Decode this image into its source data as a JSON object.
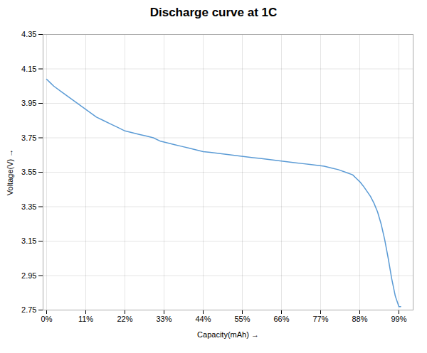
{
  "chart_data": {
    "type": "line",
    "title": "Discharge curve at 1C",
    "xlabel": "Capacity(mAh)",
    "ylabel": "Voltage(V)",
    "x": [
      0,
      1,
      2,
      4,
      6,
      8,
      10,
      12,
      14,
      16,
      18,
      20,
      22,
      24,
      26,
      28,
      30,
      32,
      34,
      36,
      38,
      40,
      42,
      44,
      46,
      48,
      50,
      52,
      54,
      56,
      58,
      60,
      62,
      64,
      66,
      68,
      70,
      72,
      74,
      76,
      78,
      80,
      82,
      84,
      86,
      87,
      88,
      89,
      90,
      91,
      92,
      93,
      94,
      95,
      96,
      97,
      98,
      99,
      99.5
    ],
    "values": [
      4.09,
      4.07,
      4.05,
      4.02,
      3.99,
      3.96,
      3.93,
      3.9,
      3.87,
      3.85,
      3.83,
      3.81,
      3.79,
      3.78,
      3.77,
      3.76,
      3.75,
      3.73,
      3.72,
      3.71,
      3.7,
      3.69,
      3.68,
      3.67,
      3.665,
      3.66,
      3.655,
      3.65,
      3.645,
      3.64,
      3.635,
      3.63,
      3.625,
      3.62,
      3.615,
      3.61,
      3.605,
      3.6,
      3.595,
      3.59,
      3.585,
      3.575,
      3.565,
      3.55,
      3.535,
      3.515,
      3.495,
      3.47,
      3.44,
      3.41,
      3.37,
      3.32,
      3.25,
      3.16,
      3.05,
      2.93,
      2.83,
      2.77,
      2.77
    ],
    "color": "#5B9BD5",
    "xlim": [
      -1,
      103
    ],
    "xticks": [
      {
        "value": 0,
        "label": "0%"
      },
      {
        "value": 11,
        "label": "11%"
      },
      {
        "value": 22,
        "label": "22%"
      },
      {
        "value": 33,
        "label": "33%"
      },
      {
        "value": 44,
        "label": "44%"
      },
      {
        "value": 55,
        "label": "55%"
      },
      {
        "value": 66,
        "label": "66%"
      },
      {
        "value": 77,
        "label": "77%"
      },
      {
        "value": 88,
        "label": "88%"
      },
      {
        "value": 99,
        "label": "99%"
      }
    ],
    "ylim": [
      2.75,
      4.35
    ],
    "yticks": [
      2.75,
      2.95,
      3.15,
      3.35,
      3.55,
      3.75,
      3.95,
      4.15,
      4.35
    ],
    "grid": true
  }
}
